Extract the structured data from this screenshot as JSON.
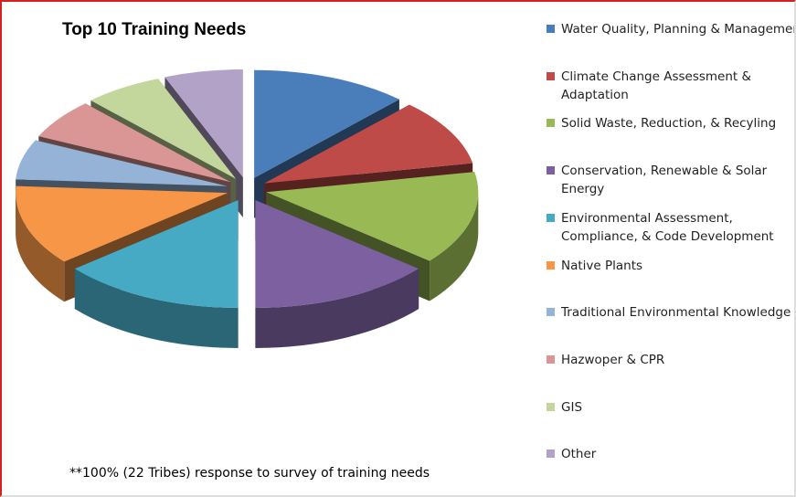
{
  "chart_data": {
    "type": "pie",
    "title": "Top 10 Training Needs",
    "annotation": "**100% (22 Tribes) response to survey of training needs",
    "categories": [
      "Water Quality, Planning & Management",
      "Climate Change Assessment & Adaptation",
      "Solid Waste, Reduction, & Recyling",
      "Conservation, Renewable & Solar Energy",
      "Environmental Assessment, Compliance, & Code Development",
      "Native Plants",
      "Traditional Environmental Knowledge",
      "Hazwoper & CPR",
      "GIS",
      "Other"
    ],
    "values": [
      12,
      10,
      14,
      14,
      14,
      12,
      6,
      6,
      6,
      6
    ],
    "colors": [
      "#4a7ebb",
      "#be4b48",
      "#98b954",
      "#7d60a0",
      "#46aac5",
      "#f79646",
      "#95b3d7",
      "#d99694",
      "#c3d69b",
      "#b3a2c7"
    ],
    "legend": "right"
  }
}
